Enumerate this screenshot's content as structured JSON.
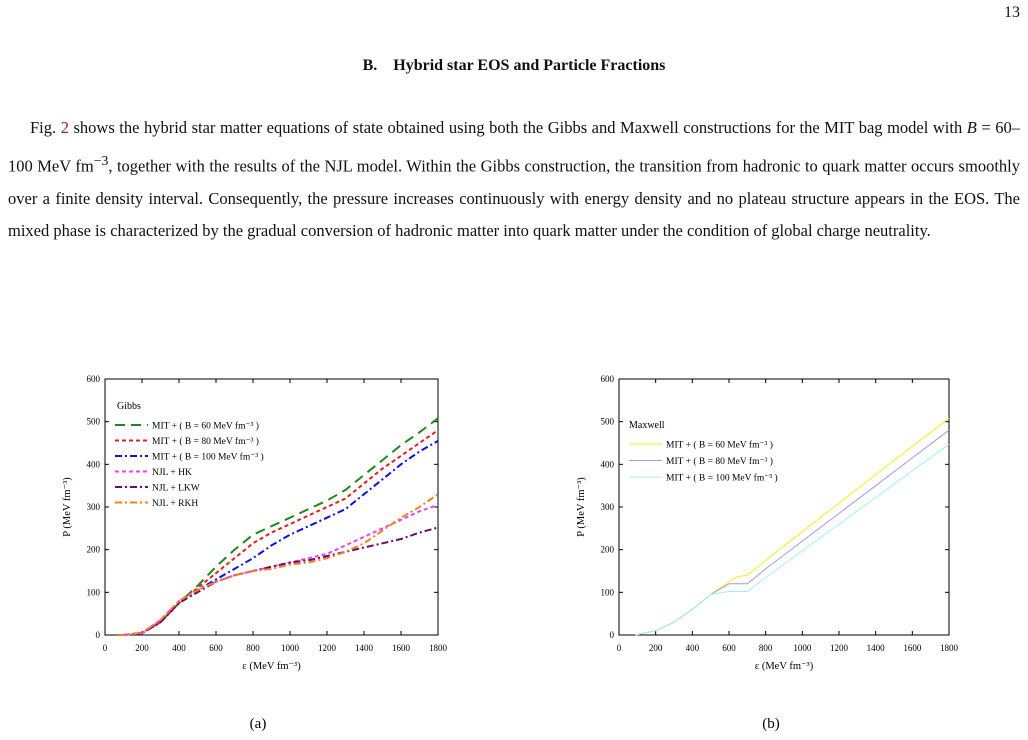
{
  "page_number": "13",
  "section_title": "B.    Hybrid star EOS and Particle Fractions",
  "paragraph": [
    "Fig. ",
    "2",
    " shows the hybrid star matter equations of state obtained using both the Gibbs and Maxwell constructions for the MIT bag model with ",
    "B",
    " = 60–100 MeV fm",
    "−3",
    ", together with the results of the NJL model. Within the Gibbs construction, the transition from hadronic to quark matter occurs smoothly over a finite density interval. Consequently, the pressure increases continuously with energy density and no plateau structure appears in the EOS. The mixed phase is characterized by the gradual conversion of hadronic matter into quark matter under the condition of global charge neutrality."
  ],
  "chart_data": [
    {
      "type": "line",
      "caption": "(a)",
      "legend_title": "Gibbs",
      "xlabel": "ε (MeV fm⁻³)",
      "ylabel": "P (MeV fm⁻³)",
      "xlim": [
        0,
        1800
      ],
      "ylim": [
        0,
        600
      ],
      "xticks": [
        0,
        200,
        400,
        600,
        800,
        1000,
        1200,
        1400,
        1600,
        1800
      ],
      "yticks": [
        0,
        100,
        200,
        300,
        400,
        500,
        600
      ],
      "x": [
        70,
        100,
        200,
        300,
        400,
        500,
        600,
        700,
        800,
        900,
        1000,
        1100,
        1200,
        1300,
        1400,
        1500,
        1600,
        1700,
        1800
      ],
      "series": [
        {
          "name": "MIT + ( B = 60 MeV fm⁻³ )",
          "color": "#1a8a1a",
          "linestyle": "long-dash",
          "values": [
            0,
            0,
            5,
            30,
            75,
            115,
            160,
            200,
            235,
            255,
            275,
            295,
            315,
            340,
            375,
            410,
            445,
            475,
            508
          ]
        },
        {
          "name": "MIT + ( B = 80 MeV fm⁻³ )",
          "color": "#e02020",
          "linestyle": "dash",
          "values": [
            0,
            0,
            5,
            30,
            75,
            110,
            145,
            180,
            215,
            240,
            260,
            280,
            300,
            320,
            355,
            390,
            420,
            450,
            480
          ]
        },
        {
          "name": "MIT + ( B = 100 MeV fm⁻³ )",
          "color": "#1010e0",
          "linestyle": "dash-dot",
          "values": [
            0,
            0,
            5,
            30,
            75,
            105,
            130,
            155,
            180,
            210,
            235,
            255,
            275,
            295,
            330,
            365,
            400,
            430,
            455
          ]
        },
        {
          "name": "NJL + HK",
          "color": "#f040f0",
          "linestyle": "dash",
          "values": [
            0,
            0,
            5,
            35,
            80,
            105,
            125,
            140,
            150,
            160,
            170,
            180,
            190,
            210,
            230,
            250,
            270,
            290,
            305
          ]
        },
        {
          "name": "NJL + LKW",
          "color": "#6a0a6a",
          "linestyle": "dash-dot",
          "values": [
            0,
            0,
            4,
            30,
            75,
            100,
            125,
            140,
            150,
            160,
            170,
            175,
            185,
            195,
            205,
            215,
            225,
            240,
            252
          ]
        },
        {
          "name": "NJL + RKH",
          "color": "#f08020",
          "linestyle": "dash-dot",
          "values": [
            0,
            0,
            5,
            35,
            80,
            105,
            125,
            140,
            150,
            155,
            165,
            170,
            180,
            195,
            215,
            245,
            275,
            300,
            330
          ]
        }
      ]
    },
    {
      "type": "line",
      "caption": "(b)",
      "legend_title": "Maxwell",
      "xlabel": "ε (MeV fm⁻³)",
      "ylabel": "P (MeV fm⁻³)",
      "xlim": [
        0,
        1800
      ],
      "ylim": [
        0,
        600
      ],
      "xticks": [
        0,
        200,
        400,
        600,
        800,
        1000,
        1200,
        1400,
        1600,
        1800
      ],
      "yticks": [
        0,
        100,
        200,
        300,
        400,
        500,
        600
      ],
      "x": [
        90,
        200,
        300,
        400,
        500,
        600,
        650,
        700,
        800,
        1000,
        1200,
        1400,
        1600,
        1800
      ],
      "series": [
        {
          "name": "MIT + ( B = 60 MeV fm⁻³ )",
          "color": "#f0f020",
          "linestyle": "solid",
          "values": [
            0,
            10,
            30,
            60,
            95,
            125,
            137,
            140,
            175,
            242,
            309,
            376,
            442,
            508
          ]
        },
        {
          "name": "MIT + ( B = 80 MeV fm⁻³ )",
          "color": "#9a9ae8",
          "linestyle": "solid",
          "values": [
            0,
            10,
            30,
            60,
            95,
            120,
            120,
            120,
            155,
            220,
            285,
            350,
            415,
            480
          ]
        },
        {
          "name": "MIT + ( B = 100 MeV fm⁻³ )",
          "color": "#a0f0f0",
          "linestyle": "solid",
          "values": [
            0,
            10,
            30,
            60,
            95,
            102,
            102,
            102,
            135,
            197,
            260,
            322,
            385,
            447
          ]
        }
      ]
    }
  ]
}
